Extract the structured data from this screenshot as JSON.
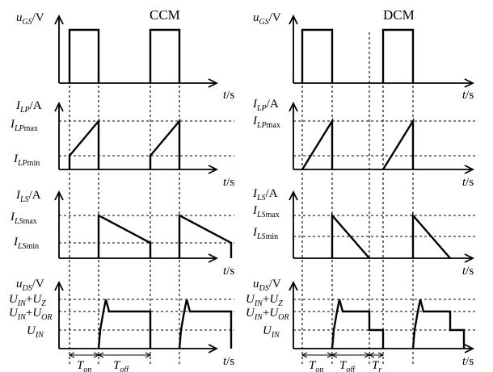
{
  "panels": {
    "ccm": {
      "title": "CCM",
      "ugs": {
        "sym": "u",
        "sub": "GS",
        "unit": "/V"
      },
      "ilp": {
        "sym": "I",
        "sub": "LP",
        "unit": "/A"
      },
      "ilp_max": {
        "sym": "I",
        "sub": "LP",
        "suffix": "max"
      },
      "ilp_min": {
        "sym": "I",
        "sub": "LP",
        "suffix": "min"
      },
      "ils": {
        "sym": "I",
        "sub": "LS",
        "unit": "/A"
      },
      "ils_max": {
        "sym": "I",
        "sub": "LS",
        "suffix": "max"
      },
      "ils_min": {
        "sym": "I",
        "sub": "LS",
        "suffix": "min"
      },
      "uds": {
        "sym": "u",
        "sub": "DS",
        "unit": "/V"
      },
      "uin_uz": {
        "a": "U",
        "asub": "IN",
        "plus": "+",
        "b": "U",
        "bsub": "Z"
      },
      "uin_uor": {
        "a": "U",
        "asub": "IN",
        "plus": "+",
        "b": "U",
        "bsub": "OR"
      },
      "uin": {
        "sym": "U",
        "sub": "IN"
      },
      "ton": {
        "sym": "T",
        "sub": "on"
      },
      "toff": {
        "sym": "T",
        "sub": "off"
      }
    },
    "dcm": {
      "title": "DCM",
      "ugs": {
        "sym": "u",
        "sub": "GS",
        "unit": "/V"
      },
      "ilp": {
        "sym": "I",
        "sub": "LP",
        "unit": "/A"
      },
      "ilp_max": {
        "sym": "I",
        "sub": "LP",
        "suffix": "max"
      },
      "ils": {
        "sym": "I",
        "sub": "LS",
        "unit": "/A"
      },
      "ils_max": {
        "sym": "I",
        "sub": "LS",
        "suffix": "max"
      },
      "ils_min": {
        "sym": "I",
        "sub": "LS",
        "suffix": "min"
      },
      "uds": {
        "sym": "u",
        "sub": "DS",
        "unit": "/V"
      },
      "uin_uz": {
        "a": "U",
        "asub": "IN",
        "plus": "+",
        "b": "U",
        "bsub": "Z"
      },
      "uin_uor": {
        "a": "U",
        "asub": "IN",
        "plus": "+",
        "b": "U",
        "bsub": "OR"
      },
      "uin": {
        "sym": "U",
        "sub": "IN"
      },
      "ton": {
        "sym": "T",
        "sub": "on"
      },
      "toff": {
        "sym": "T",
        "sub": "off"
      },
      "tr": {
        "sym": "T",
        "sub": "r"
      }
    }
  },
  "time_axis": {
    "sym": "t",
    "unit": "/s"
  }
}
